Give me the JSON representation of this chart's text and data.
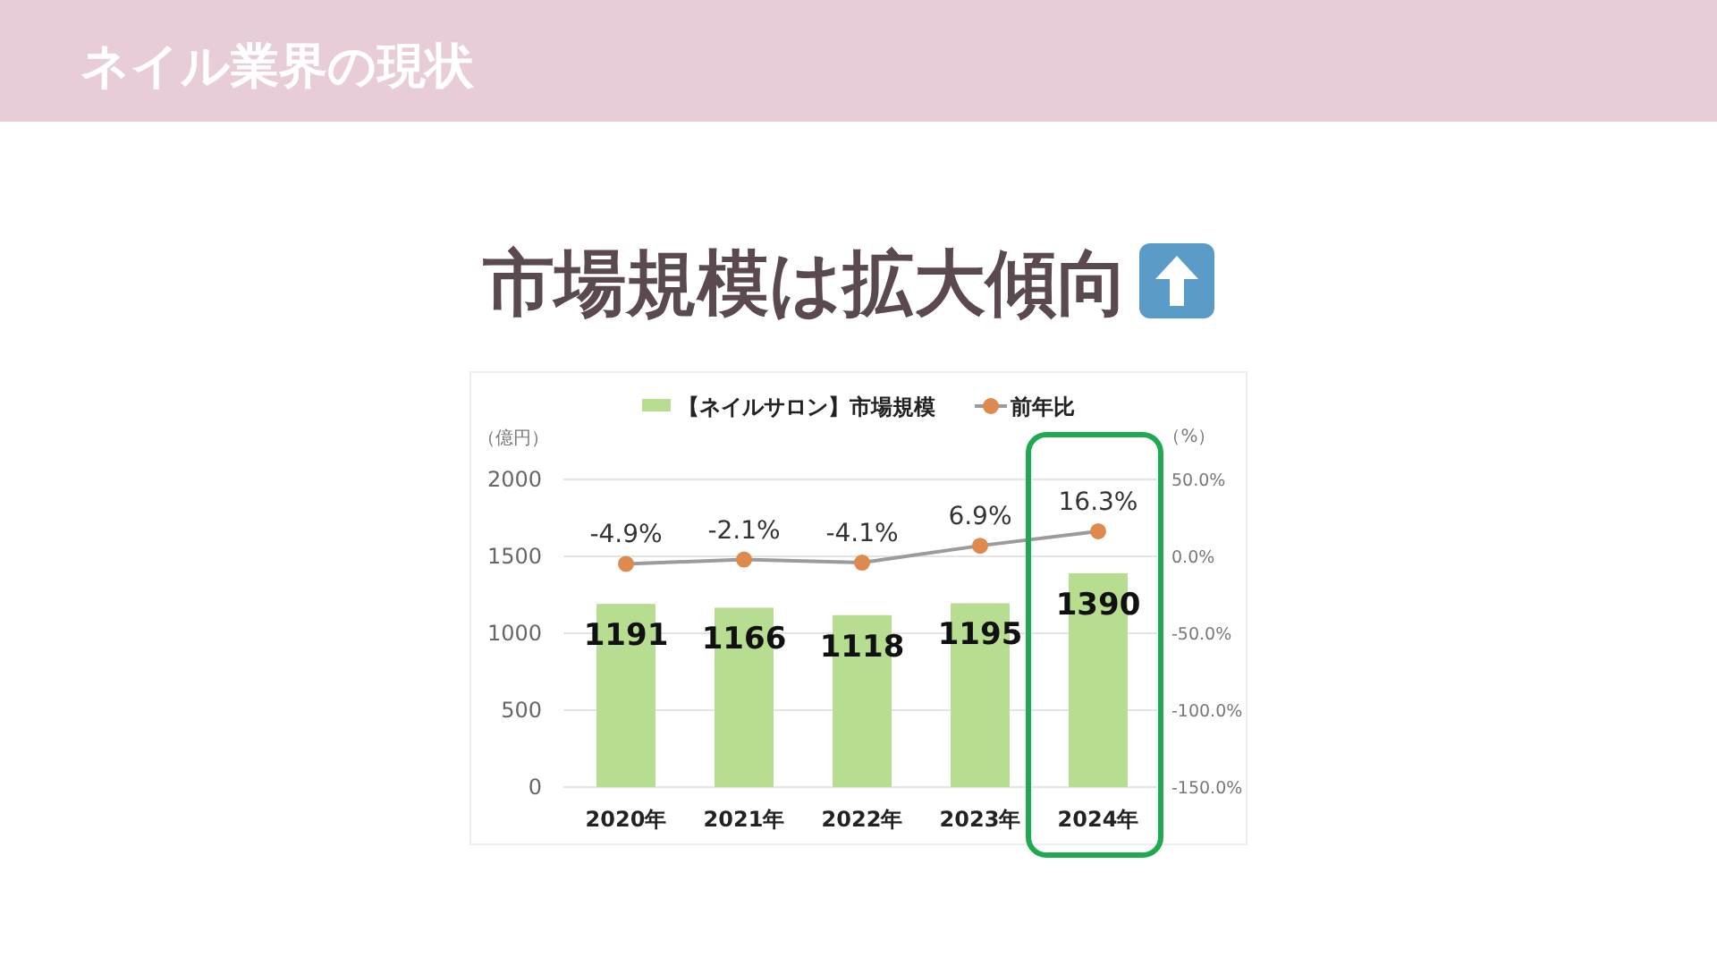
{
  "chart_data": {
    "type": "bar",
    "title": "ネイル業界の現状",
    "subtitle": "市場規模は拡大傾向",
    "ylabel": "（億円）",
    "y2label": "（%）",
    "categories": [
      "2020年",
      "2021年",
      "2022年",
      "2023年",
      "2024年"
    ],
    "series": [
      {
        "name": "【ネイルサロン】市場規模",
        "color": "#b7dd90",
        "values": [
          1191,
          1166,
          1118,
          1195,
          1390
        ],
        "value_labels": [
          "1191",
          "1166",
          "1118",
          "1195",
          "1390"
        ]
      },
      {
        "name": "前年比",
        "type": "line",
        "axis": "y2",
        "color": "#de8a4e",
        "values": [
          -4.9,
          -2.1,
          -4.1,
          6.9,
          16.3
        ],
        "value_labels": [
          "-4.9%",
          "-2.1%",
          "-4.1%",
          "6.9%",
          "16.3%"
        ]
      }
    ],
    "ylim": [
      0,
      2000
    ],
    "yticks": [
      0,
      500,
      1000,
      1500,
      2000
    ],
    "y2lim": [
      -150,
      50
    ],
    "y2ticks": [
      {
        "value": 50,
        "label": "50.0%"
      },
      {
        "value": 0,
        "label": "0.0%"
      },
      {
        "value": -50,
        "label": "-50.0%"
      },
      {
        "value": -100,
        "label": "-100.0%"
      },
      {
        "value": -150,
        "label": "-150.0%"
      }
    ],
    "grid": "y",
    "legend": "top",
    "marker": "circle",
    "line_style": "solid"
  }
}
